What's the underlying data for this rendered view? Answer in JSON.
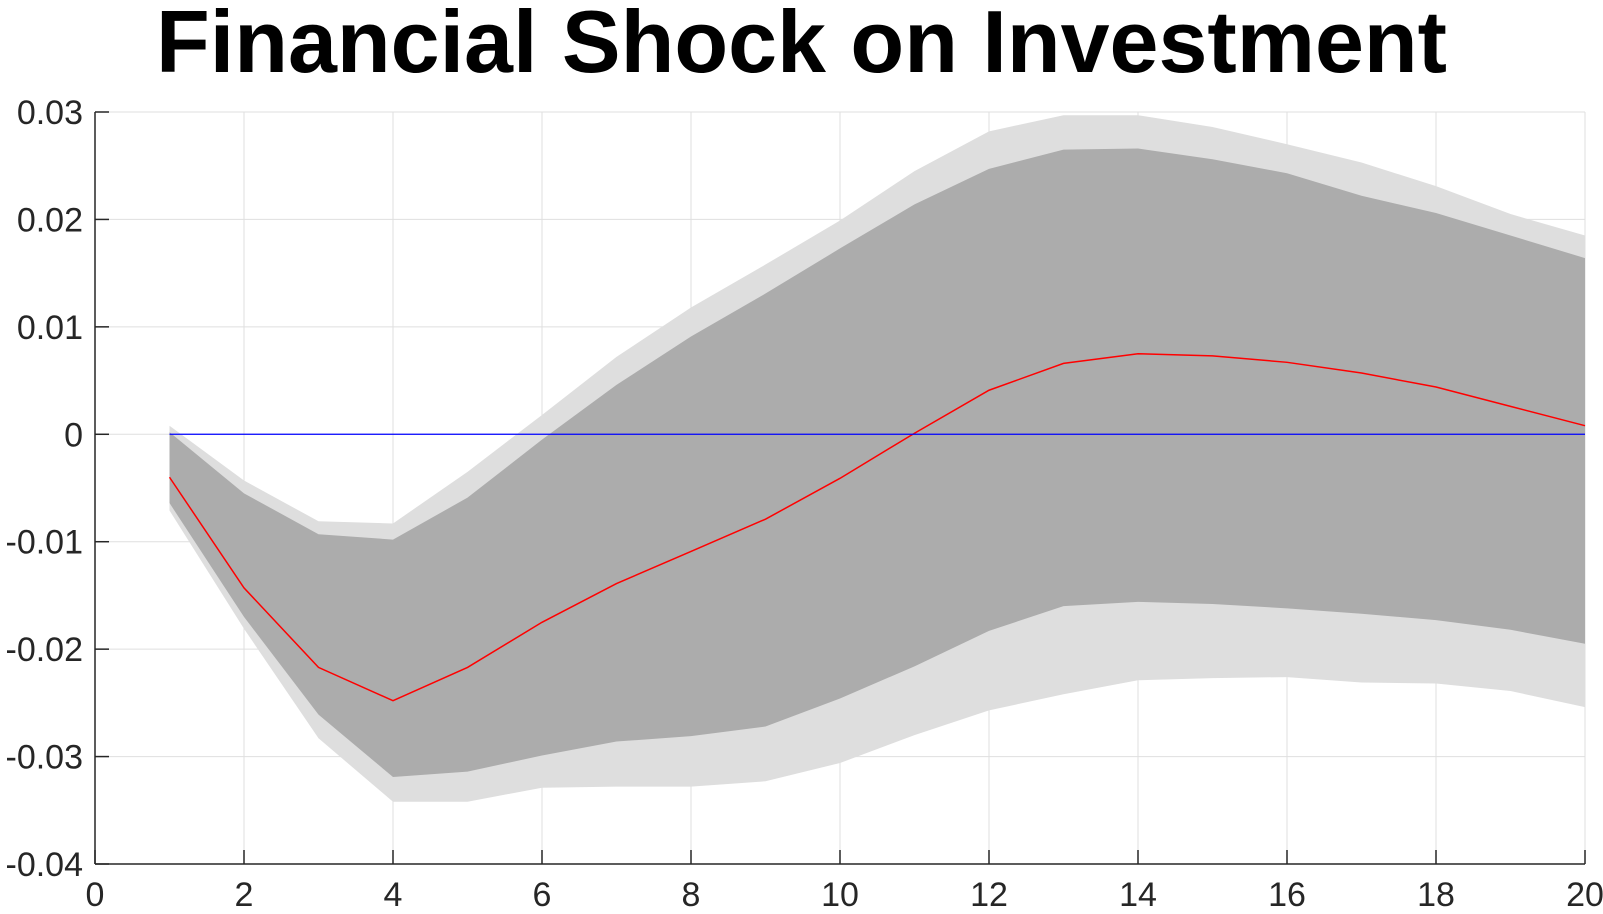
{
  "chart_data": {
    "type": "area",
    "title": "Financial Shock on Investment",
    "xlabel": "",
    "ylabel": "",
    "xlim": [
      0,
      20
    ],
    "ylim": [
      -0.04,
      0.03
    ],
    "grid": true,
    "x_ticks": [
      "0",
      "2",
      "4",
      "6",
      "8",
      "10",
      "12",
      "14",
      "16",
      "18",
      "20"
    ],
    "y_ticks": [
      "-0.04",
      "-0.03",
      "-0.02",
      "-0.01",
      "0",
      "0.01",
      "0.02",
      "0.03"
    ],
    "x": [
      1,
      2,
      3,
      4,
      5,
      6,
      7,
      8,
      9,
      10,
      11,
      12,
      13,
      14,
      15,
      16,
      17,
      18,
      19,
      20
    ],
    "series": [
      {
        "kind": "band",
        "color": "#dedede",
        "upper": [
          0.0008,
          -0.0043,
          -0.0081,
          -0.0083,
          -0.0035,
          0.0018,
          0.0072,
          0.0118,
          0.0158,
          0.0199,
          0.0245,
          0.0282,
          0.0297,
          0.0297,
          0.0286,
          0.027,
          0.0253,
          0.0231,
          0.0205,
          0.0185
        ],
        "lower": [
          -0.0071,
          -0.0181,
          -0.0283,
          -0.0342,
          -0.0342,
          -0.0329,
          -0.0328,
          -0.0328,
          -0.0323,
          -0.0306,
          -0.028,
          -0.0257,
          -0.0242,
          -0.0229,
          -0.0227,
          -0.0226,
          -0.0231,
          -0.0232,
          -0.0239,
          -0.0254
        ]
      },
      {
        "kind": "band",
        "color": "#acacac",
        "upper": [
          0.0002,
          -0.0055,
          -0.0093,
          -0.0098,
          -0.0059,
          -0.0005,
          0.0046,
          0.0091,
          0.0131,
          0.0173,
          0.0214,
          0.0247,
          0.0265,
          0.0266,
          0.0256,
          0.0243,
          0.0222,
          0.0206,
          0.0185,
          0.0164
        ],
        "lower": [
          -0.0064,
          -0.017,
          -0.0261,
          -0.0319,
          -0.0314,
          -0.0299,
          -0.0286,
          -0.0281,
          -0.0272,
          -0.0246,
          -0.0216,
          -0.0183,
          -0.016,
          -0.0156,
          -0.0158,
          -0.0162,
          -0.0167,
          -0.0173,
          -0.0182,
          -0.0195
        ]
      },
      {
        "kind": "line",
        "color": "#ff0000",
        "values": [
          -0.004,
          -0.0143,
          -0.0217,
          -0.0248,
          -0.0217,
          -0.0175,
          -0.0139,
          -0.0109,
          -0.0079,
          -0.0041,
          0.0001,
          0.0041,
          0.0066,
          0.0075,
          0.0073,
          0.0067,
          0.0057,
          0.0044,
          0.0026,
          0.0008
        ]
      },
      {
        "kind": "hline",
        "color": "#0000ff",
        "y": 0,
        "x_range": [
          1,
          20
        ]
      }
    ]
  }
}
